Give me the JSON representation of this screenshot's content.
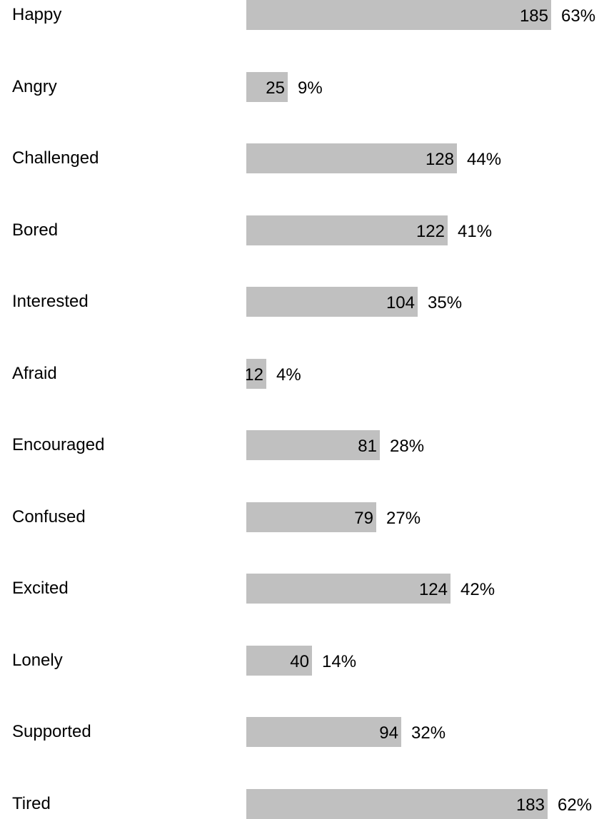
{
  "chart_data": {
    "type": "bar",
    "orientation": "horizontal",
    "categories": [
      "Happy",
      "Angry",
      "Challenged",
      "Bored",
      "Interested",
      "Afraid",
      "Encouraged",
      "Confused",
      "Excited",
      "Lonely",
      "Supported",
      "Tired"
    ],
    "values": [
      185,
      25,
      128,
      122,
      104,
      12,
      81,
      79,
      124,
      40,
      94,
      183
    ],
    "percentages": [
      "63%",
      "9%",
      "44%",
      "41%",
      "35%",
      "4%",
      "28%",
      "27%",
      "42%",
      "14%",
      "32%",
      "62%"
    ],
    "xlim": [
      0,
      185
    ],
    "grid": false,
    "legend": false,
    "bar_color": "#c0c0c0"
  }
}
